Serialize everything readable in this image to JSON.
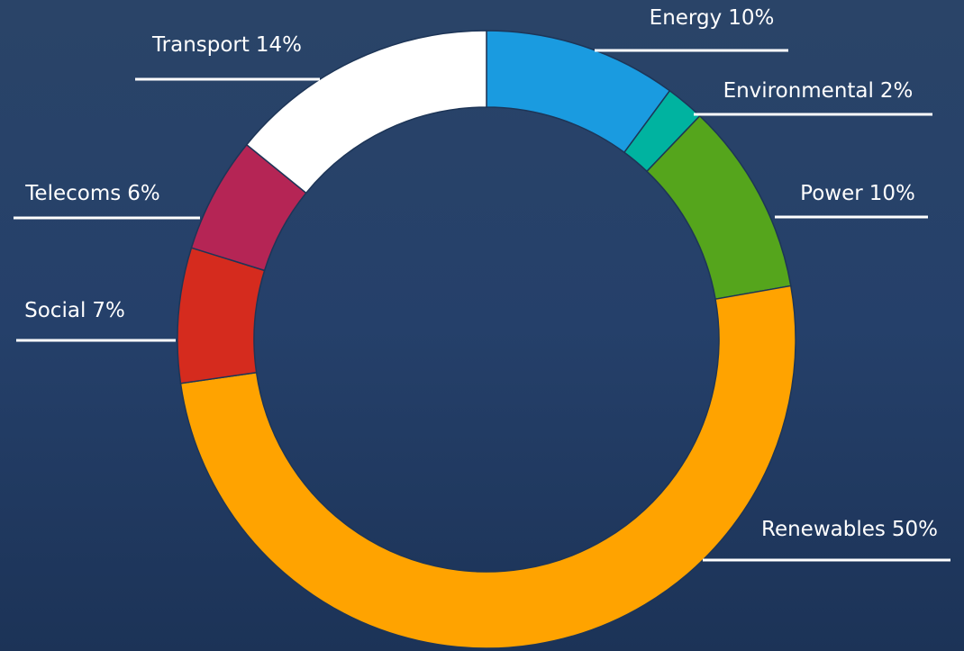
{
  "chart_data": {
    "type": "donut",
    "categories": [
      "Energy",
      "Environmental",
      "Power",
      "Renewables",
      "Social",
      "Telecoms",
      "Transport"
    ],
    "values": [
      10,
      2,
      10,
      50,
      7,
      6,
      14
    ],
    "value_labels": [
      "10%",
      "2%",
      "10%",
      "50%",
      "7%",
      "6%",
      "14%"
    ],
    "colors": [
      "#1a9be0",
      "#00b3a0",
      "#55a51c",
      "#ffa300",
      "#d52b1e",
      "#b52555",
      "#ffffff"
    ]
  }
}
